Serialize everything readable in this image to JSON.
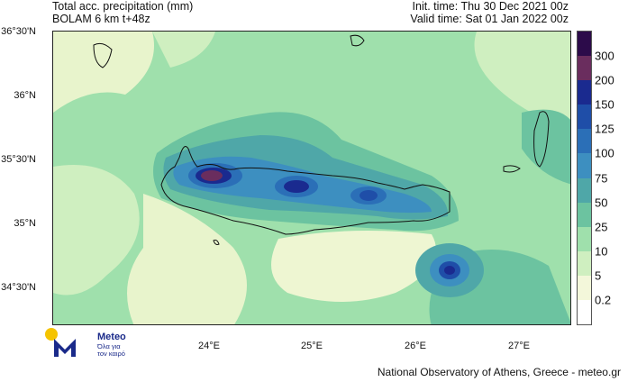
{
  "header": {
    "title_line1": "Total acc. precipitation (mm)",
    "title_line2": "BOLAM 6 km t+48z",
    "init_time": "Init. time: Thu 30 Dec 2021 00z",
    "valid_time": "Valid time: Sat 01 Jan 2022 00z"
  },
  "axes": {
    "lat_labels": [
      "36°30'N",
      "36°N",
      "35°30'N",
      "35°N",
      "34°30'N"
    ],
    "lon_labels": [
      "24°E",
      "25°E",
      "26°E",
      "27°E"
    ]
  },
  "legend": {
    "levels": [
      "300",
      "200",
      "150",
      "125",
      "100",
      "75",
      "50",
      "25",
      "10",
      "5",
      "0.2"
    ],
    "colors": [
      "#2c0b4a",
      "#6a2d5e",
      "#1a2a8f",
      "#1f4ea8",
      "#2b6fb7",
      "#3d8fc0",
      "#4fa7a8",
      "#6cc3a0",
      "#9fe0ac",
      "#cfefc0",
      "#f3f7da",
      "#ffffff"
    ]
  },
  "logo": {
    "name": "Meteo",
    "tagline1": "Όλα για",
    "tagline2": "τον καιρό",
    "brand_color": "#1a2a8a",
    "sun_color": "#f5c400"
  },
  "credit": "National Observatory of Athens, Greece - meteo.gr"
}
